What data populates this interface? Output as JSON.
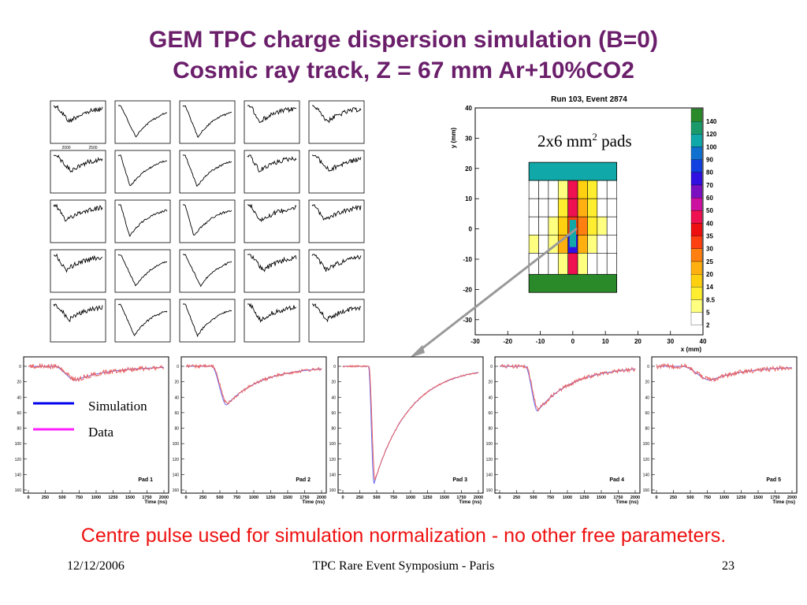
{
  "slide": {
    "title_line1": "GEM TPC charge dispersion simulation (B=0)",
    "title_line2": "Cosmic ray track, Z = 67 mm Ar+10%CO2",
    "caption": "Centre pulse used for simulation normalization - no other free parameters.",
    "footer_date": "12/12/2006",
    "footer_event": "TPC Rare Event Symposium - Paris",
    "footer_page": "23",
    "pads_label_main": "2x6 mm",
    "pads_label_sup": "2",
    "pads_label_tail": " pads"
  },
  "colors": {
    "title": "#6b1f6b",
    "caption": "#ee1111",
    "simulation": "#0000ee",
    "data": "#ff22ff",
    "sim_line": "#6a6af0",
    "data_line": "#e86060",
    "arrow": "#999999"
  },
  "chart_data": [
    {
      "type": "heatmap",
      "title": "Run 103, Event 2874",
      "xlabel": "x (mm)",
      "ylabel": "y (mm)",
      "xlim": [
        -30,
        40
      ],
      "ylim": [
        -35,
        40
      ],
      "xticks": [
        "-30",
        "-20",
        "-10",
        "0",
        "10",
        "20",
        "30",
        "40"
      ],
      "yticks": [
        "40",
        "30",
        "20",
        "10",
        "0",
        "-10",
        "-20",
        "-30"
      ],
      "colorbar_labels": [
        "140",
        "120",
        "100",
        "90",
        "80",
        "70",
        "60",
        "50",
        "40",
        "35",
        "30",
        "25",
        "20",
        "14",
        "8.5",
        "5",
        "2"
      ],
      "colorbar_colors": [
        "#2a8a2a",
        "#1a9a6a",
        "#10a8a8",
        "#1070d0",
        "#1040e0",
        "#3010e0",
        "#7a10c0",
        "#cc10a0",
        "#ee1050",
        "#ee1010",
        "#ff4010",
        "#ff8010",
        "#ffb010",
        "#ffd010",
        "#ffee30",
        "#ffff80",
        "#ffffff"
      ],
      "pad_columns": [
        -12,
        -9,
        -6,
        -3,
        0,
        3,
        6,
        9,
        12
      ],
      "pad_rows": [
        10,
        4,
        -2,
        -8,
        -14
      ],
      "pad_row_colors": [
        [
          "#ffffff",
          "#ffffff",
          "#ffffff",
          "#ffff80",
          "#ee1050",
          "#ffd010",
          "#ffee30",
          "#ffffff",
          "#ffffff"
        ],
        [
          "#ffffff",
          "#ffffff",
          "#ffffff",
          "#ffee30",
          "#ee1050",
          "#ffb010",
          "#ffee30",
          "#ffffff",
          "#ffffff"
        ],
        [
          "#ffffff",
          "#ffffff",
          "#ffff80",
          "#ffd010",
          "#ff4010",
          "#ff8010",
          "#ffee30",
          "#ffff80",
          "#ffffff"
        ],
        [
          "#ffff80",
          "#ffffff",
          "#ffff80",
          "#ffb010",
          "#3010e0",
          "#ffb010",
          "#ffff80",
          "#ffffff",
          "#ffffff"
        ],
        [
          "#ffffff",
          "#ffffff",
          "#ffff80",
          "#ffee30",
          "#ee1050",
          "#ffd010",
          "#ffff80",
          "#ffffff",
          "#ffffff"
        ]
      ],
      "top_block_color": "#10a8a8",
      "bottom_block_color": "#2a8a2a",
      "legend_label": "2x6 mm2 pads"
    },
    {
      "type": "line",
      "description_free": true,
      "grid_rows": 5,
      "grid_cols": 5,
      "x_tick_labels_sample": [
        "2000",
        "2500"
      ],
      "note": "small raw-pulse panels"
    },
    {
      "type": "line",
      "xlabel": "Time (ns)",
      "xlim": [
        0,
        2000
      ],
      "xticks": [
        "0",
        "250",
        "500",
        "750",
        "1000",
        "1250",
        "1500",
        "1750",
        "2000"
      ],
      "yticks": [
        "0",
        "20",
        "40",
        "60",
        "80",
        "100",
        "120",
        "140",
        "160"
      ],
      "legend": [
        "Simulation",
        "Data"
      ],
      "panels": [
        {
          "name": "Pad 1",
          "scale": 18,
          "peak_t": 700,
          "noise": 6
        },
        {
          "name": "Pad 2",
          "scale": 50,
          "peak_t": 600,
          "noise": 4
        },
        {
          "name": "Pad 3",
          "scale": 152,
          "peak_t": 460,
          "noise": 2
        },
        {
          "name": "Pad 4",
          "scale": 58,
          "peak_t": 560,
          "noise": 5
        },
        {
          "name": "Pad 5",
          "scale": 18,
          "peak_t": 800,
          "noise": 6
        }
      ]
    }
  ]
}
